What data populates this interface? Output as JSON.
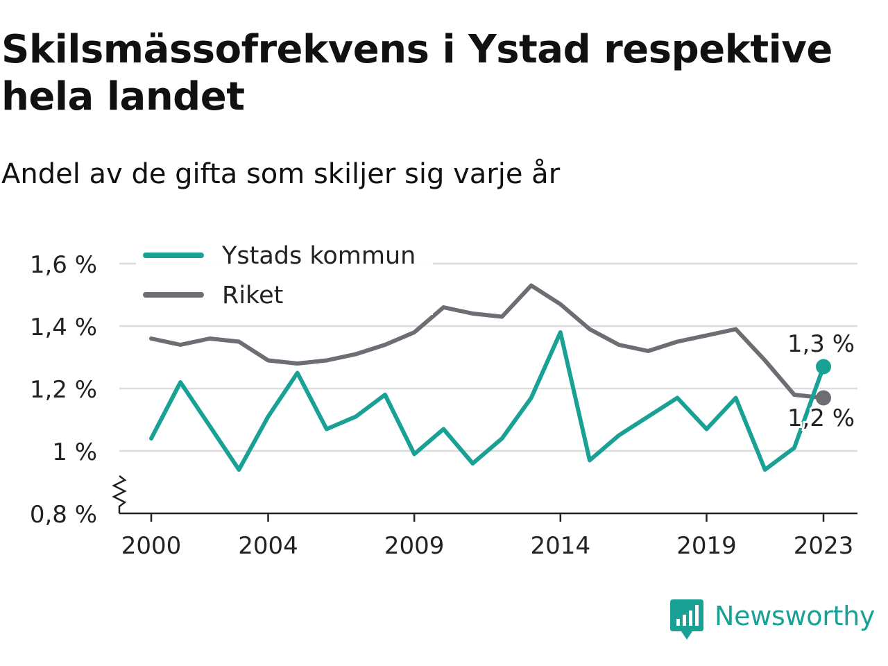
{
  "title": "Skilsmässofrekvens i Ystad respektive hela landet",
  "subtitle": "Andel av de gifta som skiljer sig varje år",
  "brand": {
    "name": "Newsworthy",
    "icon": "newsworthy-logo-icon",
    "color": "#1aa195"
  },
  "chart_data": {
    "type": "line",
    "title": "Skilsmässofrekvens i Ystad respektive hela landet",
    "subtitle": "Andel av de gifta som skiljer sig varje år",
    "x": [
      2000,
      2001,
      2002,
      2003,
      2004,
      2005,
      2006,
      2007,
      2008,
      2009,
      2010,
      2011,
      2012,
      2013,
      2014,
      2015,
      2016,
      2017,
      2018,
      2019,
      2020,
      2021,
      2022,
      2023
    ],
    "xticks": [
      2000,
      2004,
      2009,
      2014,
      2019,
      2023
    ],
    "xtick_labels": [
      "2000",
      "2004",
      "2009",
      "2014",
      "2019",
      "2023"
    ],
    "ylim": [
      0.8,
      1.6
    ],
    "yticks": [
      0.8,
      1.0,
      1.2,
      1.4,
      1.6
    ],
    "ytick_labels": [
      "0,8 %",
      "1 %",
      "1,2 %",
      "1,4 %",
      "1,6 %"
    ],
    "axis_break": true,
    "grid": "horizontal",
    "legend_position": "top-left",
    "series": [
      {
        "name": "Ystads kommun",
        "color": "#1aa195",
        "values": [
          1.04,
          1.22,
          1.08,
          0.94,
          1.11,
          1.25,
          1.07,
          1.11,
          1.18,
          0.99,
          1.07,
          0.96,
          1.04,
          1.17,
          1.38,
          0.97,
          1.05,
          1.11,
          1.17,
          1.07,
          1.17,
          0.94,
          1.01,
          1.27
        ],
        "end_label": "1,3 %"
      },
      {
        "name": "Riket",
        "color": "#6e6d73",
        "values": [
          1.36,
          1.34,
          1.36,
          1.35,
          1.29,
          1.28,
          1.29,
          1.31,
          1.34,
          1.38,
          1.46,
          1.44,
          1.43,
          1.53,
          1.47,
          1.39,
          1.34,
          1.32,
          1.35,
          1.37,
          1.39,
          1.29,
          1.18,
          1.17
        ],
        "end_label": "1,2 %"
      }
    ]
  }
}
